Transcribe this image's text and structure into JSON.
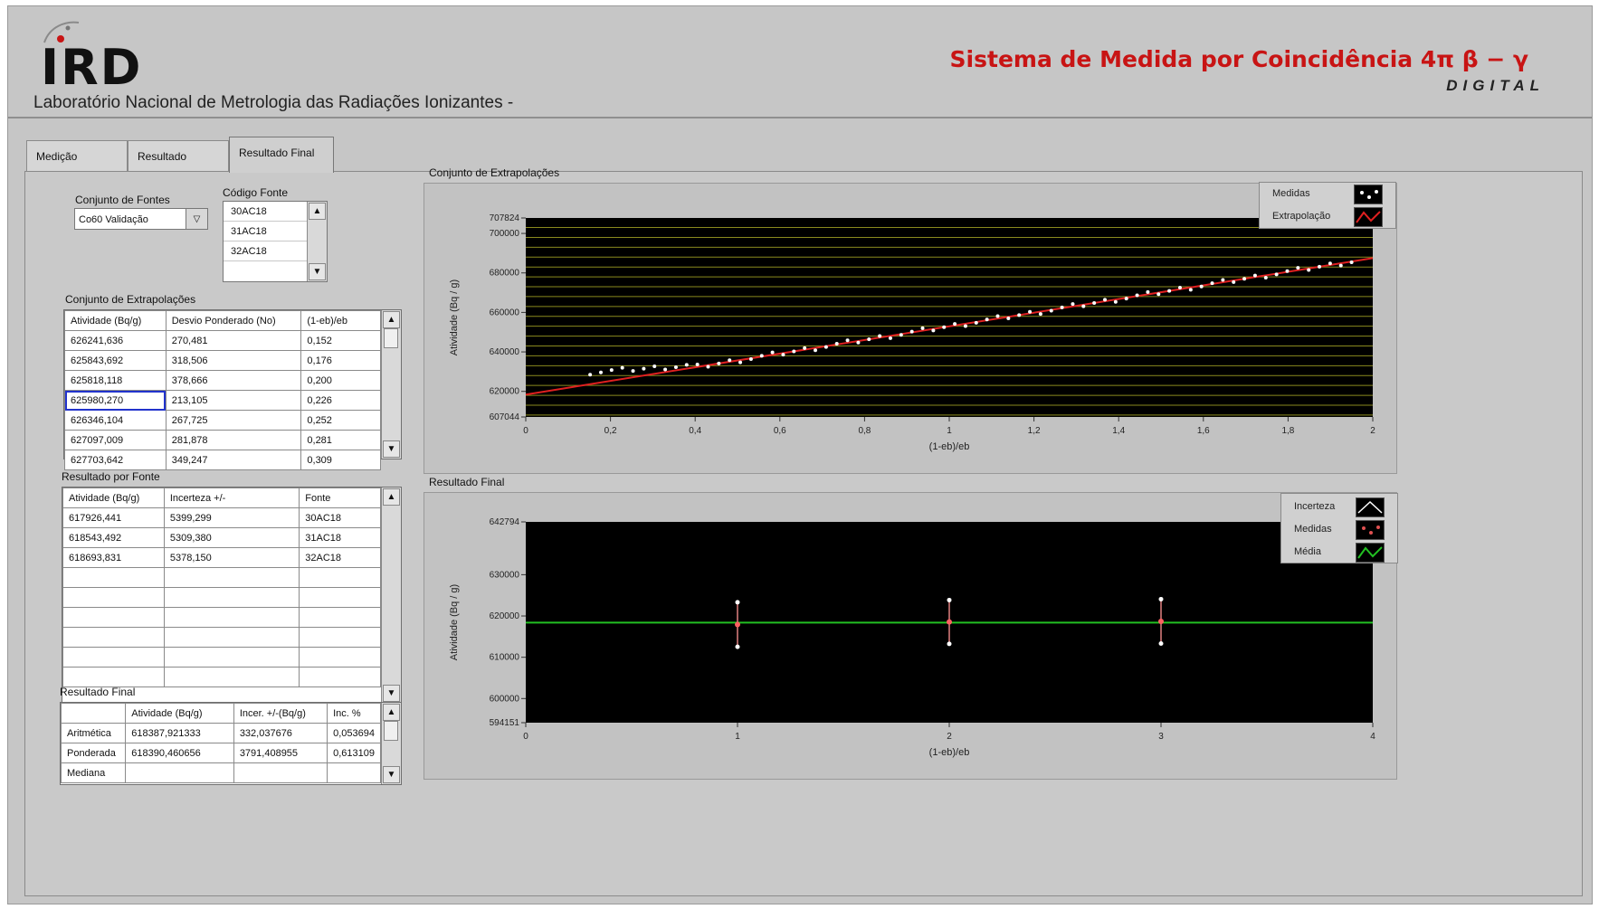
{
  "header": {
    "logo_text": "IRD",
    "lab_name": "Laboratório Nacional de Metrologia das Radiações Ionizantes -",
    "system_title": "Sistema de Medida por Coincidência 4π β − γ",
    "system_subtitle": "DIGITAL"
  },
  "tabs": [
    {
      "label": "Medição"
    },
    {
      "label": "Resultado"
    },
    {
      "label": "Resultado Final"
    }
  ],
  "sources": {
    "label": "Conjunto de Fontes",
    "value": "Co60 Validação"
  },
  "source_code": {
    "label": "Código Fonte",
    "items": [
      "30AC18",
      "31AC18",
      "32AC18"
    ]
  },
  "extrapolation_table": {
    "label": "Conjunto de Extrapolações",
    "headers": [
      "Atividade (Bq/g)",
      "Desvio Ponderado (No)",
      "(1-eb)/eb"
    ],
    "rows": [
      [
        "626241,636",
        "270,481",
        "0,152"
      ],
      [
        "625843,692",
        "318,506",
        "0,176"
      ],
      [
        "625818,118",
        "378,666",
        "0,200"
      ],
      [
        "625980,270",
        "213,105",
        "0,226"
      ],
      [
        "626346,104",
        "267,725",
        "0,252"
      ],
      [
        "627097,009",
        "281,878",
        "0,281"
      ],
      [
        "627703,642",
        "349,247",
        "0,309"
      ]
    ]
  },
  "source_results": {
    "label": "Resultado por Fonte",
    "headers": [
      "Atividade (Bq/g)",
      "Incerteza +/-",
      "Fonte"
    ],
    "rows": [
      [
        "617926,441",
        "5399,299",
        "30AC18"
      ],
      [
        "618543,492",
        "5309,380",
        "31AC18"
      ],
      [
        "618693,831",
        "5378,150",
        "32AC18"
      ]
    ]
  },
  "final_table": {
    "label": "Resultado Final",
    "headers": [
      "",
      "Atividade (Bq/g)",
      "Incer. +/-(Bq/g)",
      "Inc. %"
    ],
    "rows": [
      [
        "Aritmética",
        "618387,921333",
        "332,037676",
        "0,053694"
      ],
      [
        "Ponderada",
        "618390,460656",
        "3791,408955",
        "0,613109"
      ],
      [
        "Mediana",
        "",
        "",
        ""
      ]
    ]
  },
  "chart_data": [
    {
      "type": "scatter",
      "title": "Conjunto de Extrapolações",
      "xlabel": "(1-eb)/eb",
      "ylabel": "Atividade (Bq / g)",
      "xlim": [
        0,
        2
      ],
      "ylim": [
        607044,
        707824
      ],
      "xticks": [
        "0",
        "0,2",
        "0,4",
        "0,6",
        "0,8",
        "1",
        "1,2",
        "1,4",
        "1,6",
        "1,8",
        "2"
      ],
      "yticks": [
        "607044",
        "620000",
        "640000",
        "660000",
        "680000",
        "700000",
        "707824"
      ],
      "legend": [
        "Medidas",
        "Extrapolação"
      ],
      "legend_position": "top-right",
      "grid": true,
      "series": [
        {
          "name": "Medidas",
          "x_start": 0.152,
          "x_end": 1.95,
          "count": 72,
          "y_start": 626242,
          "y_end": 686500
        },
        {
          "name": "Extrapolação",
          "line": [
            [
              0,
              618388
            ],
            [
              2,
              687500
            ]
          ]
        }
      ]
    },
    {
      "type": "scatter",
      "title": "Resultado Final",
      "xlabel": "(1-eb)/eb",
      "ylabel": "Atividade (Bq / g)",
      "xlim": [
        0,
        4
      ],
      "ylim": [
        594151,
        642794
      ],
      "xticks": [
        "0",
        "1",
        "2",
        "3",
        "4"
      ],
      "yticks": [
        "594151",
        "600000",
        "610000",
        "620000",
        "630000",
        "642794"
      ],
      "legend": [
        "Incerteza",
        "Medidas",
        "Média"
      ],
      "legend_position": "top-right",
      "grid": false,
      "series": [
        {
          "name": "Medidas",
          "x": [
            1,
            2,
            3
          ],
          "y": [
            617926,
            618543,
            618694
          ],
          "err": [
            5399,
            5309,
            5378
          ]
        },
        {
          "name": "Média",
          "y": 618388
        }
      ]
    }
  ]
}
